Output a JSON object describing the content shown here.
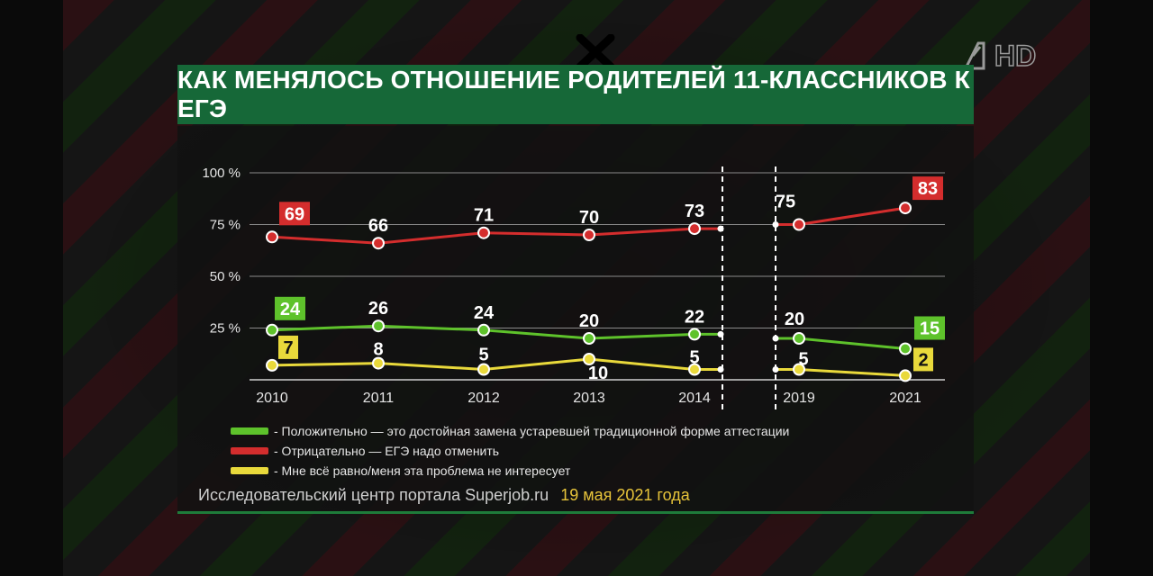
{
  "title": "КАК МЕНЯЛОСЬ ОТНОШЕНИЕ РОДИТЕЛЕЙ 11-КЛАССНИКОВ К ЕГЭ",
  "channel_logo": {
    "icon": "channel-one-hd-logo",
    "text": "HD"
  },
  "chart_data": {
    "type": "line",
    "title": "КАК МЕНЯЛОСЬ ОТНОШЕНИЕ РОДИТЕЛЕЙ 11-КЛАССНИКОВ К ЕГЭ",
    "x": [
      "2010",
      "2011",
      "2012",
      "2013",
      "2014",
      "2019",
      "2021"
    ],
    "y_ticks": [
      "100 %",
      "75 %",
      "50 %",
      "25 %"
    ],
    "y_tick_values": [
      100,
      75,
      50,
      25
    ],
    "ylim": [
      0,
      100
    ],
    "grid": true,
    "axis_breaks": [
      "2014-2019"
    ],
    "series": [
      {
        "key": "negative",
        "color": "#d42d2d",
        "values": [
          69,
          66,
          71,
          70,
          73,
          75,
          83
        ],
        "labels": [
          "69",
          "66",
          "71",
          "70",
          "73",
          "75",
          "83"
        ],
        "boxed_labels": [
          0,
          6
        ]
      },
      {
        "key": "positive",
        "color": "#5ec22b",
        "values": [
          24,
          26,
          24,
          20,
          22,
          20,
          15
        ],
        "labels": [
          "24",
          "26",
          "24",
          "20",
          "22",
          "20",
          "15"
        ],
        "boxed_labels": [
          0,
          6
        ]
      },
      {
        "key": "indifferent",
        "color": "#e9d93b",
        "values": [
          7,
          8,
          5,
          10,
          5,
          5,
          2
        ],
        "labels": [
          "7",
          "8",
          "5",
          "10",
          "5",
          "5",
          "2"
        ],
        "boxed_labels": [
          0,
          6
        ]
      }
    ],
    "legend": [
      {
        "color": "#5ec22b",
        "label": "- Положительно — это достойная замена устаревшей традиционной форме аттестации"
      },
      {
        "color": "#d42d2d",
        "label": "- Отрицательно — ЕГЭ надо отменить"
      },
      {
        "color": "#e9d93b",
        "label": "- Мне всё равно/меня эта проблема не интересует"
      }
    ],
    "legend_placement": "bottom"
  },
  "source": {
    "org": "Исследовательский центр портала Superjob.ru",
    "date": "19 мая 2021 года"
  }
}
